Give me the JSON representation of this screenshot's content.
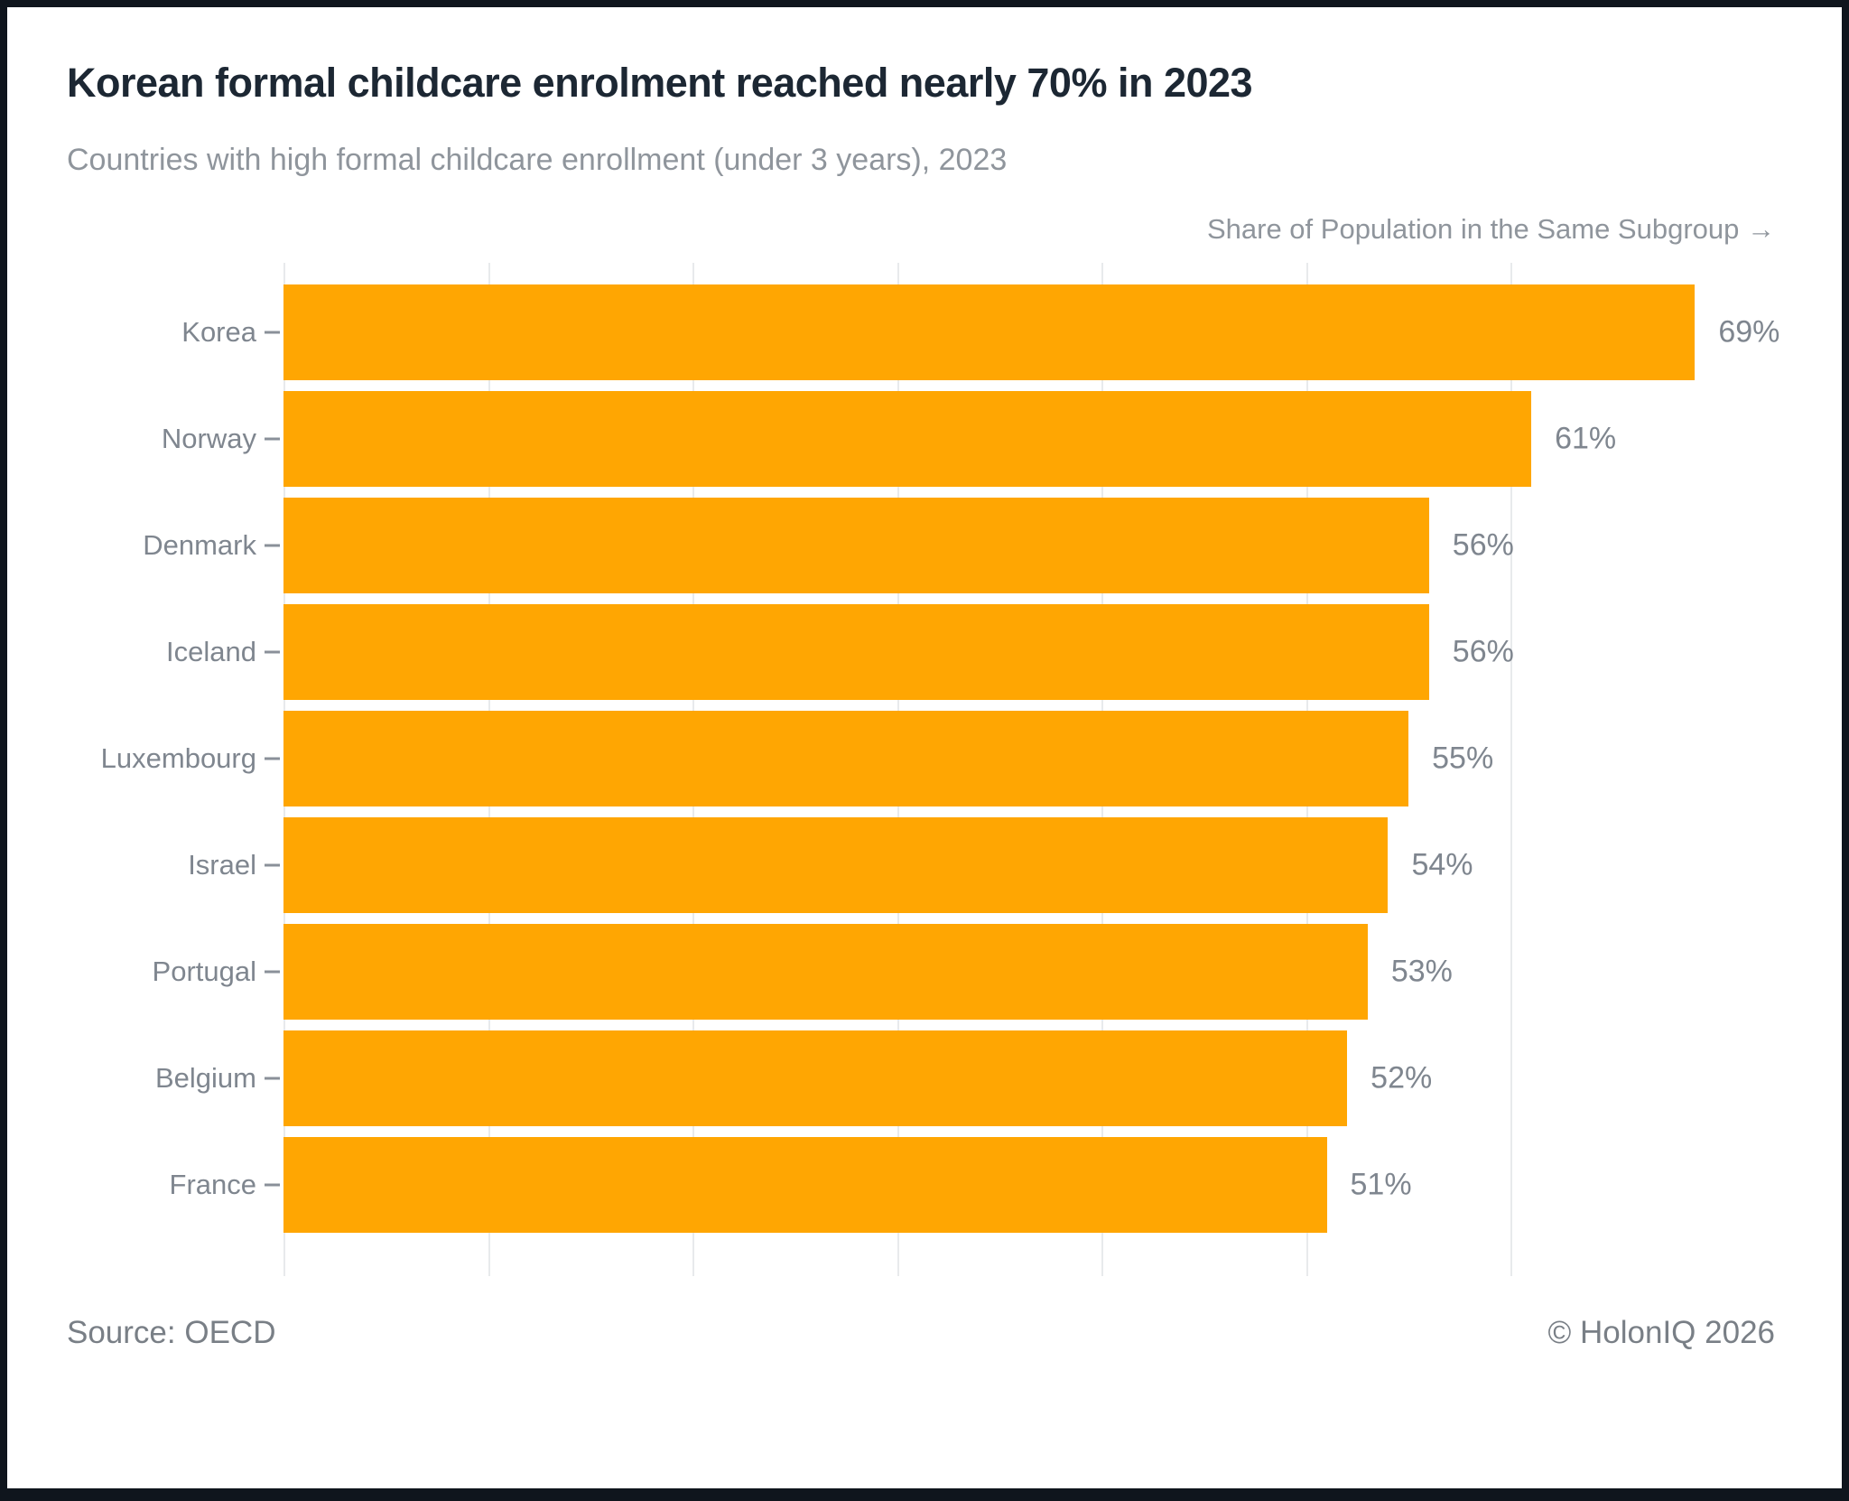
{
  "chart_data": {
    "type": "bar",
    "orientation": "horizontal",
    "title": "Korean formal childcare enrolment reached nearly 70% in 2023",
    "subtitle": "Countries with high formal childcare enrollment (under 3 years), 2023",
    "xlabel": "Share of Population in the Same Subgroup →",
    "categories": [
      "Korea",
      "Norway",
      "Denmark",
      "Iceland",
      "Luxembourg",
      "Israel",
      "Portugal",
      "Belgium",
      "France"
    ],
    "values": [
      69,
      61,
      56,
      56,
      55,
      54,
      53,
      52,
      51
    ],
    "value_suffix": "%",
    "xlim": [
      0,
      70
    ],
    "gridlines_at": [
      0,
      10,
      20,
      30,
      40,
      50,
      60
    ],
    "grid": "vertical",
    "legend": false,
    "bar_color": "#FFA602"
  },
  "footer": {
    "source": "Source: OECD",
    "credit": "© HolonIQ 2026"
  },
  "colors": {
    "bar": "#FFA602",
    "title_text": "#1C2733",
    "muted_text": "#8A9099",
    "gridline": "#E8EAEC",
    "frame": "#0F151D",
    "card_background": "#FFFFFF"
  }
}
